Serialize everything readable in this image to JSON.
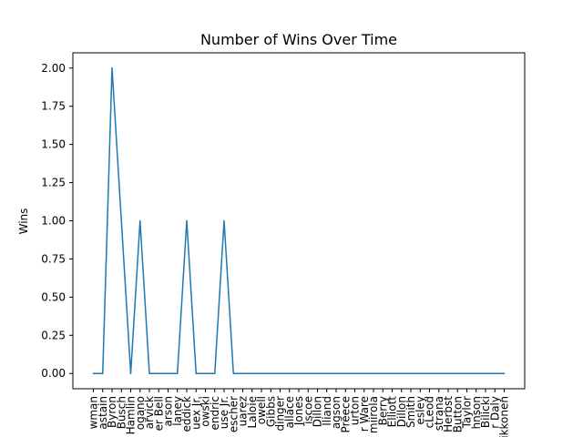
{
  "chart_data": {
    "type": "line",
    "title": "Number of Wins Over Time",
    "xlabel": "",
    "ylabel": "Wins",
    "ylim": [
      -0.1,
      2.1
    ],
    "yticks": [
      "0.00",
      "0.25",
      "0.50",
      "0.75",
      "1.00",
      "1.25",
      "1.50",
      "1.75",
      "2.00"
    ],
    "ytick_values": [
      0,
      0.25,
      0.5,
      0.75,
      1.0,
      1.25,
      1.5,
      1.75,
      2.0
    ],
    "grid": false,
    "color": "#1f77b4",
    "categories": [
      "wman",
      "astain",
      "Byron",
      "Busch",
      "Hamlin",
      "ogano",
      "arvick",
      "er Bell",
      "arson",
      "laney",
      "eddick",
      "uex Jr.",
      "owski",
      "endric",
      "use Jr.",
      "escher",
      "uarez",
      "Laloie",
      "owell",
      "Gibbs",
      "dinger",
      "allace",
      "Jones",
      "iscoe",
      "Dillon",
      "lliand",
      "agson",
      "Preece",
      "urton",
      "r Ware",
      "miirola",
      "Berry",
      "Elliott",
      "Dillon",
      "Smith",
      "esley",
      "cLeod",
      "strana",
      "Herbst",
      "Button",
      "Taylor",
      "hnson",
      "Bilicki",
      "r Daly",
      "ikkonen"
    ],
    "values": [
      0,
      0,
      2,
      1,
      0,
      1,
      0,
      0,
      0,
      0,
      1,
      0,
      0,
      0,
      1,
      0,
      0,
      0,
      0,
      0,
      0,
      0,
      0,
      0,
      0,
      0,
      0,
      0,
      0,
      0,
      0,
      0,
      0,
      0,
      0,
      0,
      0,
      0,
      0,
      0,
      0,
      0,
      0,
      0,
      0
    ]
  }
}
